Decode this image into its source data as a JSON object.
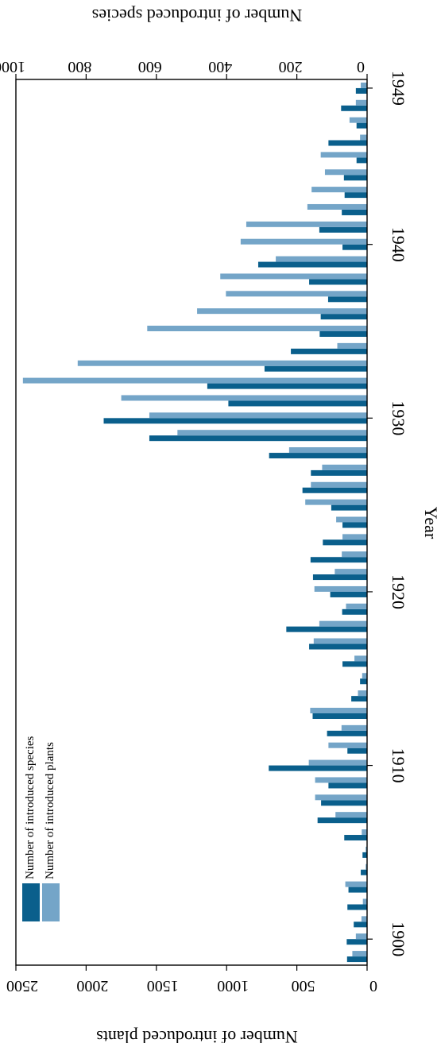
{
  "chart_data": {
    "type": "bar",
    "orientation": "rotated-vertical",
    "xlabel": "Year",
    "ylabel_left": "Number of introduced plants",
    "ylabel_right": "Number of introduced species",
    "ylim_plants": [
      0,
      2500
    ],
    "ylim_species": [
      0,
      1000
    ],
    "year_ticks": [
      "1900",
      "1910",
      "1920",
      "1930",
      "1940",
      "1949"
    ],
    "plant_ticks": [
      "0",
      "500",
      "1000",
      "1500",
      "2000",
      "2500"
    ],
    "species_ticks": [
      "0",
      "200",
      "400",
      "600",
      "800",
      "1000"
    ],
    "legend_position": "bottom-left",
    "grid": false,
    "colors": {
      "species": "#0a5f8c",
      "plants": "#74a5c8"
    },
    "years": [
      1899,
      1900,
      1901,
      1902,
      1903,
      1904,
      1905,
      1906,
      1907,
      1908,
      1909,
      1910,
      1911,
      1912,
      1913,
      1914,
      1915,
      1916,
      1917,
      1918,
      1919,
      1920,
      1921,
      1922,
      1923,
      1924,
      1925,
      1926,
      1927,
      1928,
      1929,
      1930,
      1931,
      1932,
      1933,
      1934,
      1935,
      1936,
      1937,
      1938,
      1939,
      1940,
      1941,
      1942,
      1943,
      1944,
      1945,
      1946,
      1947,
      1948,
      1949
    ],
    "series": [
      {
        "name": "Number of introduced species",
        "axis": "species",
        "values": [
          57,
          58,
          38,
          56,
          53,
          18,
          13,
          65,
          141,
          131,
          110,
          280,
          56,
          114,
          155,
          45,
          20,
          70,
          165,
          230,
          71,
          105,
          154,
          161,
          126,
          70,
          102,
          184,
          160,
          279,
          620,
          750,
          395,
          455,
          292,
          217,
          135,
          132,
          111,
          165,
          310,
          70,
          136,
          72,
          64,
          66,
          30,
          110,
          30,
          74,
          32
        ]
      },
      {
        "name": "Number of introduced plants",
        "axis": "plants",
        "values": [
          105,
          80,
          40,
          30,
          155,
          10,
          10,
          38,
          225,
          370,
          370,
          415,
          275,
          182,
          405,
          65,
          35,
          90,
          380,
          340,
          150,
          375,
          230,
          180,
          175,
          220,
          440,
          400,
          320,
          555,
          1350,
          1550,
          1750,
          2450,
          2060,
          212,
          1565,
          1210,
          1005,
          1045,
          650,
          900,
          860,
          425,
          395,
          300,
          330,
          50,
          125,
          80,
          45
        ]
      }
    ]
  }
}
